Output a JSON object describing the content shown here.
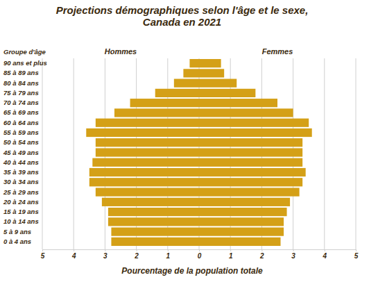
{
  "chart_data": {
    "type": "bar",
    "orientation": "horizontal",
    "title": [
      "Projections démographiques selon l'âge et le sexe,",
      "Canada en 2021"
    ],
    "ylabel": "Groupe d'âge",
    "xlabel": "Pourcentage de la population totale",
    "categories": [
      "0 à 4 ans",
      "5 à 9 ans",
      "10 à 14 ans",
      "15 à 19 ans",
      "20 à 24 ans",
      "25 à 29 ans",
      "30 à 34 ans",
      "35 à 39 ans",
      "40 à 44 ans",
      "45 à 49 ans",
      "50 à 54 ans",
      "55 à 59 ans",
      "60 à 64 ans",
      "65 à 69 ans",
      "70 à 74 ans",
      "75 à 79 ans",
      "80 à 84 ans",
      "85 à 89 ans",
      "90 ans et plus"
    ],
    "series": [
      {
        "name": "Hommes",
        "color": "#d4a017",
        "values": [
          2.8,
          2.8,
          2.9,
          2.9,
          3.1,
          3.3,
          3.5,
          3.5,
          3.4,
          3.3,
          3.3,
          3.6,
          3.3,
          2.7,
          2.2,
          1.4,
          0.8,
          0.5,
          0.3
        ]
      },
      {
        "name": "Femmes",
        "color": "#d4a017",
        "values": [
          2.6,
          2.7,
          2.7,
          2.8,
          2.9,
          3.2,
          3.3,
          3.4,
          3.3,
          3.3,
          3.3,
          3.6,
          3.5,
          3.0,
          2.5,
          1.8,
          1.2,
          0.8,
          0.7
        ]
      }
    ],
    "xlim": [
      0,
      5
    ],
    "xticks": [
      0,
      1,
      2,
      3,
      4,
      5
    ],
    "grid": true
  }
}
